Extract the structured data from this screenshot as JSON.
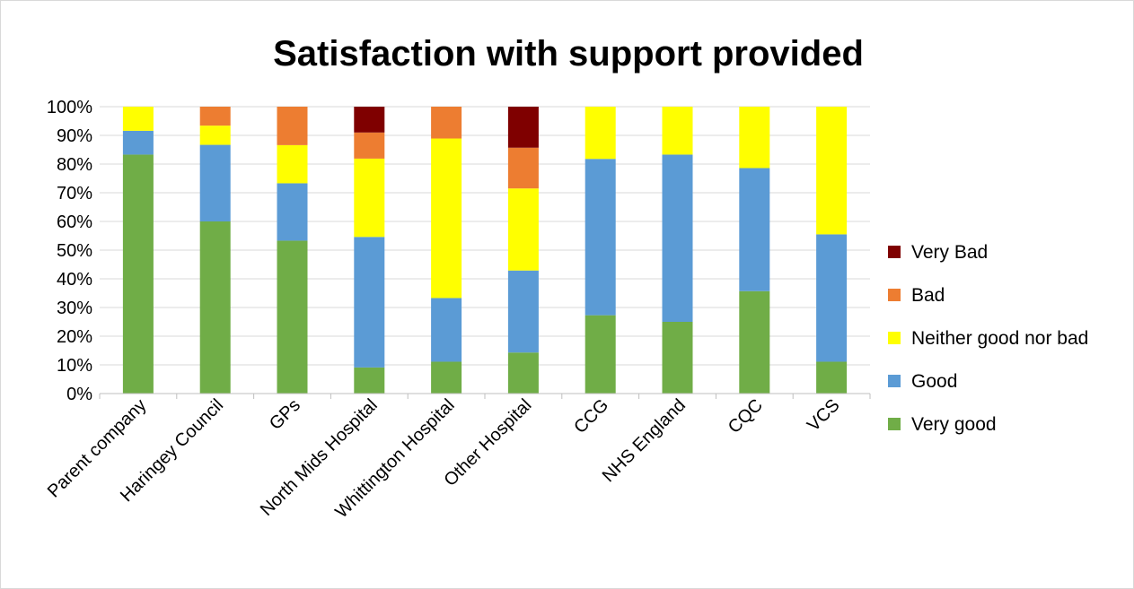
{
  "chart_data": {
    "type": "bar",
    "stacked": true,
    "title": "Satisfaction with support provided",
    "xlabel": "",
    "ylabel": "",
    "ylim": [
      0,
      100
    ],
    "y_ticks": [
      "0%",
      "10%",
      "20%",
      "30%",
      "40%",
      "50%",
      "60%",
      "70%",
      "80%",
      "90%",
      "100%"
    ],
    "grid": true,
    "legend_position": "right",
    "categories": [
      "Parent company",
      "Haringey Council",
      "GPs",
      "North Mids Hospital",
      "Whittington Hospital",
      "Other Hospital",
      "CCG",
      "NHS England",
      "CQC",
      "VCS"
    ],
    "series": [
      {
        "name": "Very good",
        "color": "#70ad47",
        "values": [
          83.3,
          60.0,
          53.3,
          9.1,
          11.1,
          14.3,
          27.3,
          25.0,
          35.7,
          11.1
        ]
      },
      {
        "name": "Good",
        "color": "#5b9bd5",
        "values": [
          8.3,
          26.7,
          20.0,
          45.5,
          22.2,
          28.6,
          54.5,
          58.3,
          42.9,
          44.4
        ]
      },
      {
        "name": "Neither good nor bad",
        "color": "#ffff00",
        "values": [
          8.4,
          6.7,
          13.3,
          27.3,
          55.6,
          28.6,
          18.2,
          16.7,
          21.4,
          44.5
        ]
      },
      {
        "name": "Bad",
        "color": "#ed7d31",
        "values": [
          0,
          6.6,
          13.4,
          9.1,
          11.1,
          14.2,
          0,
          0,
          0,
          0
        ]
      },
      {
        "name": "Very Bad",
        "color": "#7f0000",
        "values": [
          0,
          0,
          0,
          9.0,
          0,
          14.3,
          0,
          0,
          0,
          0
        ]
      }
    ],
    "legend_order": [
      "Very Bad",
      "Bad",
      "Neither good nor bad",
      "Good",
      "Very good"
    ]
  }
}
